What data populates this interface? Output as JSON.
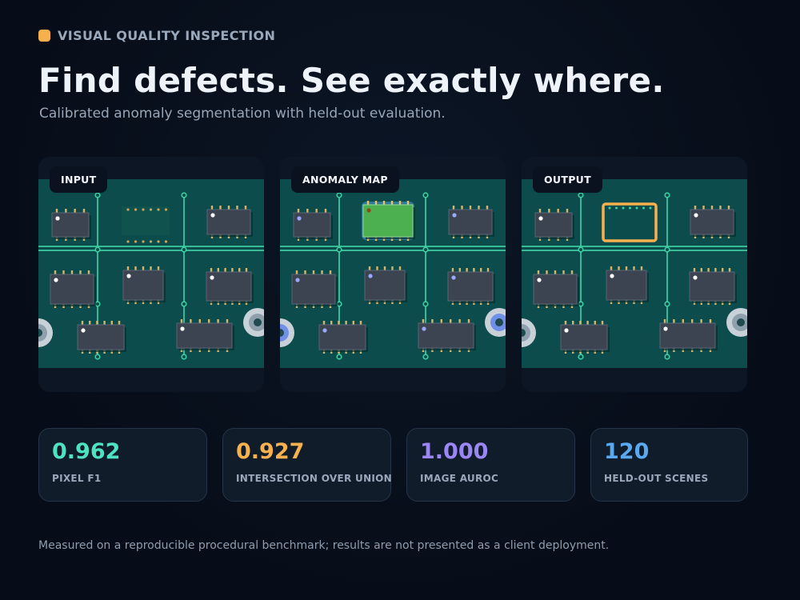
{
  "header": {
    "eyebrow": "VISUAL QUALITY INSPECTION",
    "title": "Find defects. See exactly where.",
    "subtitle": "Calibrated anomaly segmentation with held-out evaluation."
  },
  "panels": [
    {
      "label": "INPUT"
    },
    {
      "label": "ANOMALY MAP"
    },
    {
      "label": "OUTPUT"
    }
  ],
  "metrics": [
    {
      "value": "0.962",
      "label": "PIXEL F1",
      "color": "#4de3c1"
    },
    {
      "value": "0.927",
      "label": "INTERSECTION OVER UNION",
      "color": "#f6b04e"
    },
    {
      "value": "1.000",
      "label": "IMAGE AUROC",
      "color": "#9a86f5"
    },
    {
      "value": "120",
      "label": "HELD-OUT SCENES",
      "color": "#5aa9f0"
    }
  ],
  "footnote": "Measured on a reproducible procedural benchmark; results are not presented as a client deployment.",
  "colors": {
    "accent": "#f6b04e",
    "board": "#0d4c4c",
    "trace": "#3fcfa3",
    "chip": "#3c4351",
    "heat": "#4caf50",
    "box": "#f6b04e"
  }
}
